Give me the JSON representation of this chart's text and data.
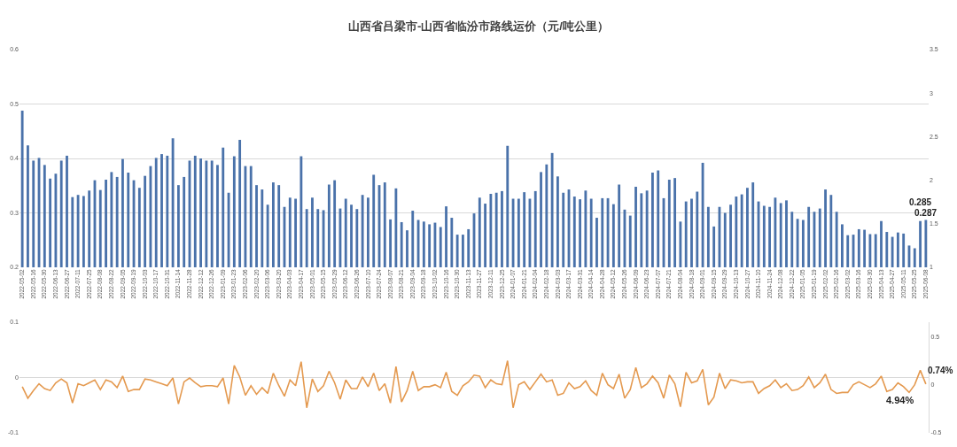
{
  "chart_data": [
    {
      "type": "bar",
      "title": "山西省吕梁市-山西省临汾市路线运价（元/吨公里）",
      "categories": [
        "2022-05-02",
        null,
        "2022-05-16",
        null,
        "2022-05-30",
        null,
        "2022-06-13",
        null,
        "2022-06-27",
        null,
        "2022-07-11",
        null,
        "2022-07-25",
        null,
        "2022-08-08",
        null,
        "2022-08-22",
        null,
        "2022-09-05",
        null,
        "2022-09-19",
        null,
        "2022-10-03",
        null,
        "2022-10-17",
        null,
        "2022-10-31",
        null,
        "2022-11-14",
        null,
        "2022-11-28",
        null,
        "2022-12-12",
        null,
        "2022-12-26",
        null,
        "2023-01-09",
        null,
        "2023-01-23",
        null,
        "2023-02-06",
        null,
        "2023-02-20",
        null,
        "2023-03-06",
        null,
        "2023-03-20",
        null,
        "2023-04-03",
        null,
        "2023-04-17",
        null,
        "2023-05-01",
        null,
        "2023-05-15",
        null,
        "2023-05-29",
        null,
        "2023-06-12",
        null,
        "2023-06-26",
        null,
        "2023-07-10",
        null,
        "2023-07-24",
        null,
        "2023-08-07",
        null,
        "2023-08-21",
        null,
        "2023-09-04",
        null,
        "2023-09-18",
        null,
        "2023-10-02",
        null,
        "2023-10-16",
        null,
        "2023-10-30",
        null,
        "2023-11-13",
        null,
        "2023-11-27",
        null,
        "2023-12-11",
        null,
        "2023-12-25",
        null,
        "2024-01-07",
        null,
        "2024-01-21",
        null,
        "2024-02-04",
        null,
        "2024-02-18",
        null,
        "2024-03-03",
        null,
        "2024-03-17",
        null,
        "2024-03-31",
        null,
        "2024-04-14",
        null,
        "2024-04-28",
        null,
        "2024-05-12",
        null,
        "2024-05-26",
        null,
        "2024-06-09",
        null,
        "2024-06-23",
        null,
        "2024-07-07",
        null,
        "2024-07-21",
        null,
        "2024-08-04",
        null,
        "2024-08-18",
        null,
        "2024-09-01",
        null,
        "2024-09-15",
        null,
        "2024-09-29",
        null,
        "2024-10-13",
        null,
        "2024-10-27",
        null,
        "2024-11-10",
        null,
        "2024-11-24",
        null,
        "2024-12-08",
        null,
        "2024-12-22",
        null,
        "2025-01-05",
        null,
        "2025-01-19",
        null,
        "2025-02-02",
        null,
        "2025-02-16",
        null,
        "2025-03-02",
        null,
        "2025-03-16",
        null,
        "2025-03-30",
        null,
        "2025-04-13",
        null,
        "2025-04-27",
        null,
        "2025-05-11",
        null,
        "2025-05-25",
        null,
        "2025-06-08"
      ],
      "series": [
        {
          "color": "#4a72aa",
          "values": [
            0.488,
            0.424,
            0.396,
            0.401,
            0.388,
            0.363,
            0.372,
            0.396,
            0.405,
            0.329,
            0.333,
            0.331,
            0.341,
            0.36,
            0.342,
            0.361,
            0.375,
            0.366,
            0.399,
            0.374,
            0.36,
            0.346,
            0.368,
            0.386,
            0.401,
            0.408,
            0.405,
            0.437,
            0.351,
            0.366,
            0.396,
            0.405,
            0.4,
            0.396,
            0.396,
            0.388,
            0.42,
            0.337,
            0.404,
            0.434,
            0.386,
            0.386,
            0.351,
            0.343,
            0.315,
            0.356,
            0.351,
            0.311,
            0.328,
            0.326,
            0.404,
            0.307,
            0.328,
            0.307,
            0.305,
            0.352,
            0.36,
            0.308,
            0.326,
            0.315,
            0.307,
            0.333,
            0.328,
            0.37,
            0.351,
            0.356,
            0.288,
            0.345,
            0.283,
            0.268,
            0.304,
            0.287,
            0.284,
            0.279,
            0.282,
            0.274,
            0.312,
            0.291,
            0.26,
            0.26,
            0.27,
            0.299,
            0.328,
            0.317,
            0.335,
            0.337,
            0.34,
            0.423,
            0.326,
            0.326,
            0.338,
            0.326,
            0.34,
            0.375,
            0.389,
            0.41,
            0.367,
            0.337,
            0.343,
            0.33,
            0.325,
            0.341,
            0.326,
            0.291,
            0.327,
            0.327,
            0.316,
            0.352,
            0.306,
            0.295,
            0.348,
            0.336,
            0.341,
            0.374,
            0.378,
            0.327,
            0.361,
            0.364,
            0.284,
            0.321,
            0.326,
            0.339,
            0.392,
            0.311,
            0.275,
            0.311,
            0.3,
            0.315,
            0.33,
            0.334,
            0.346,
            0.356,
            0.321,
            0.313,
            0.311,
            0.328,
            0.318,
            0.323,
            0.302,
            0.289,
            0.287,
            0.311,
            0.302,
            0.308,
            0.343,
            0.333,
            0.302,
            0.279,
            0.259,
            0.26,
            0.27,
            0.269,
            0.261,
            0.261,
            0.285,
            0.265,
            0.256,
            0.264,
            0.262,
            0.24,
            0.235,
            0.285,
            0.287
          ],
          "value_labels": [
            null,
            null,
            null,
            null,
            null,
            null,
            null,
            null,
            null,
            null,
            null,
            null,
            null,
            null,
            null,
            null,
            null,
            null,
            null,
            null,
            null,
            null,
            null,
            null,
            null,
            null,
            null,
            null,
            null,
            null,
            null,
            null,
            null,
            null,
            null,
            null,
            null,
            null,
            null,
            null,
            null,
            null,
            null,
            null,
            null,
            null,
            null,
            null,
            null,
            null,
            null,
            null,
            null,
            null,
            null,
            null,
            null,
            null,
            null,
            null,
            null,
            null,
            null,
            null,
            null,
            null,
            null,
            null,
            null,
            null,
            null,
            null,
            null,
            null,
            null,
            null,
            null,
            null,
            null,
            null,
            null,
            null,
            null,
            null,
            null,
            null,
            null,
            null,
            null,
            null,
            null,
            null,
            null,
            null,
            null,
            null,
            null,
            null,
            null,
            null,
            null,
            null,
            null,
            null,
            null,
            null,
            null,
            null,
            null,
            null,
            null,
            null,
            null,
            null,
            null,
            null,
            null,
            null,
            null,
            null,
            null,
            null,
            null,
            null,
            null,
            null,
            null,
            null,
            null,
            null,
            null,
            null,
            null,
            null,
            null,
            null,
            null,
            null,
            null,
            null,
            null,
            null,
            null,
            null,
            null,
            null,
            null,
            null,
            null,
            null,
            null,
            null,
            null,
            null,
            null,
            null,
            null,
            null,
            null,
            null,
            null,
            "0.285",
            "0.287"
          ]
        }
      ],
      "ylim": [
        0.2,
        0.6
      ],
      "yticks": [
        0.2,
        0.3,
        0.4,
        0.5,
        0.6
      ],
      "y2lim": [
        1,
        3.5
      ],
      "y2ticks": [
        1,
        1.5,
        2,
        2.5,
        3,
        3.5
      ],
      "grid": "y",
      "legend": false
    },
    {
      "type": "line",
      "categories": [
        null,
        null,
        null,
        null,
        null,
        null,
        null,
        null,
        null,
        null,
        null,
        null,
        null,
        null,
        null,
        null,
        null,
        null,
        null,
        null,
        null,
        null,
        null,
        null,
        null,
        null,
        null,
        null,
        null,
        null,
        null,
        null,
        null,
        null,
        null,
        null,
        null,
        null,
        null,
        null,
        null,
        null,
        null,
        null,
        null,
        null,
        null,
        null,
        null,
        null,
        null,
        null,
        null,
        null,
        null,
        null,
        null,
        null,
        null,
        null,
        null,
        null,
        null,
        null,
        null,
        null,
        null,
        null,
        null,
        null,
        null,
        null,
        null,
        null,
        null,
        null,
        null,
        null,
        null,
        null,
        null,
        null,
        null,
        null,
        null,
        null,
        null,
        null,
        null,
        null,
        null,
        null,
        null,
        null,
        null,
        null,
        null,
        null,
        null,
        null,
        null,
        null,
        null,
        null,
        null,
        null,
        null,
        null,
        null,
        null,
        null,
        null,
        null,
        null,
        null,
        null,
        null,
        null,
        null,
        null,
        null,
        null,
        null,
        null,
        null,
        null,
        null,
        null,
        null,
        null,
        null,
        null,
        null,
        null,
        null,
        null,
        null,
        null,
        null,
        null,
        null,
        null,
        null,
        null,
        null,
        null,
        null,
        null,
        null,
        null,
        null,
        null,
        null,
        null,
        null,
        null,
        null,
        null,
        null,
        null,
        null,
        null,
        null
      ],
      "series": [
        {
          "color": "#e4994f",
          "axis": "y2",
          "values": [
            -0.02,
            -0.14,
            -0.06,
            0.01,
            -0.04,
            -0.06,
            0.02,
            0.06,
            0.02,
            -0.19,
            0.01,
            -0.01,
            0.02,
            0.05,
            -0.05,
            0.05,
            0.03,
            -0.03,
            0.09,
            -0.07,
            -0.05,
            -0.05,
            0.06,
            0.05,
            0.03,
            0.01,
            -0.01,
            0.07,
            -0.2,
            0.03,
            0.07,
            0.02,
            -0.02,
            -0.01,
            -0.01,
            -0.02,
            0.07,
            -0.2,
            0.2,
            0.08,
            -0.11,
            -0.01,
            -0.1,
            -0.03,
            -0.09,
            0.12,
            -0.01,
            -0.12,
            0.05,
            -0.01,
            0.24,
            -0.24,
            0.06,
            -0.07,
            -0.01,
            0.14,
            0.02,
            -0.15,
            0.05,
            -0.04,
            -0.04,
            0.08,
            -0.02,
            0.12,
            -0.06,
            0.01,
            -0.19,
            0.19,
            -0.18,
            -0.06,
            0.14,
            -0.06,
            -0.02,
            -0.02,
            0.0,
            -0.03,
            0.13,
            -0.07,
            -0.11,
            -0.01,
            0.03,
            0.1,
            0.09,
            -0.03,
            0.05,
            0.01,
            0.0,
            0.25,
            -0.24,
            0.0,
            0.03,
            -0.05,
            0.03,
            0.11,
            0.03,
            0.05,
            -0.11,
            -0.09,
            0.02,
            -0.04,
            -0.02,
            0.04,
            -0.06,
            -0.11,
            0.12,
            0.0,
            -0.04,
            0.11,
            -0.14,
            -0.05,
            0.18,
            -0.03,
            0.01,
            0.09,
            0.02,
            -0.14,
            0.1,
            0.01,
            -0.23,
            0.13,
            0.02,
            0.04,
            0.16,
            -0.21,
            -0.13,
            0.12,
            -0.04,
            0.05,
            0.04,
            0.02,
            0.03,
            0.03,
            -0.09,
            -0.04,
            -0.01,
            0.05,
            -0.03,
            0.01,
            -0.06,
            -0.05,
            -0.01,
            0.08,
            -0.03,
            0.02,
            0.11,
            -0.05,
            -0.09,
            -0.08,
            -0.08,
            0.0,
            0.03,
            0.0,
            -0.03,
            0.01,
            0.09,
            -0.07,
            -0.05,
            0.02,
            -0.02,
            -0.08,
            0.0,
            0.15,
            0.0074
          ],
          "value_labels": [
            null,
            null,
            null,
            null,
            null,
            null,
            null,
            null,
            null,
            null,
            null,
            null,
            null,
            null,
            null,
            null,
            null,
            null,
            null,
            null,
            null,
            null,
            null,
            null,
            null,
            null,
            null,
            null,
            null,
            null,
            null,
            null,
            null,
            null,
            null,
            null,
            null,
            null,
            null,
            null,
            null,
            null,
            null,
            null,
            null,
            null,
            null,
            null,
            null,
            null,
            null,
            null,
            null,
            null,
            null,
            null,
            null,
            null,
            null,
            null,
            null,
            null,
            null,
            null,
            null,
            null,
            null,
            null,
            null,
            null,
            null,
            null,
            null,
            null,
            null,
            null,
            null,
            null,
            null,
            null,
            null,
            null,
            null,
            null,
            null,
            null,
            null,
            null,
            null,
            null,
            null,
            null,
            null,
            null,
            null,
            null,
            null,
            null,
            null,
            null,
            null,
            null,
            null,
            null,
            null,
            null,
            null,
            null,
            null,
            null,
            null,
            null,
            null,
            null,
            null,
            null,
            null,
            null,
            null,
            null,
            null,
            null,
            null,
            null,
            null,
            null,
            null,
            null,
            null,
            null,
            null,
            null,
            null,
            null,
            null,
            null,
            null,
            null,
            null,
            null,
            null,
            null,
            null,
            null,
            null,
            null,
            null,
            null,
            null,
            null,
            null,
            null,
            null,
            null,
            null,
            null,
            null,
            null,
            null,
            null,
            null,
            null,
            "0.74%"
          ]
        }
      ],
      "ylim": [
        -0.1,
        0.1
      ],
      "yticks": [
        -0.1,
        0,
        0.1
      ],
      "y2lim": [
        -0.5,
        0.65
      ],
      "y2ticks": [
        -0.5,
        0,
        0.5
      ],
      "annotations": [
        "4.94%"
      ],
      "grid": "y",
      "legend": false,
      "tick_labels": "y"
    }
  ]
}
